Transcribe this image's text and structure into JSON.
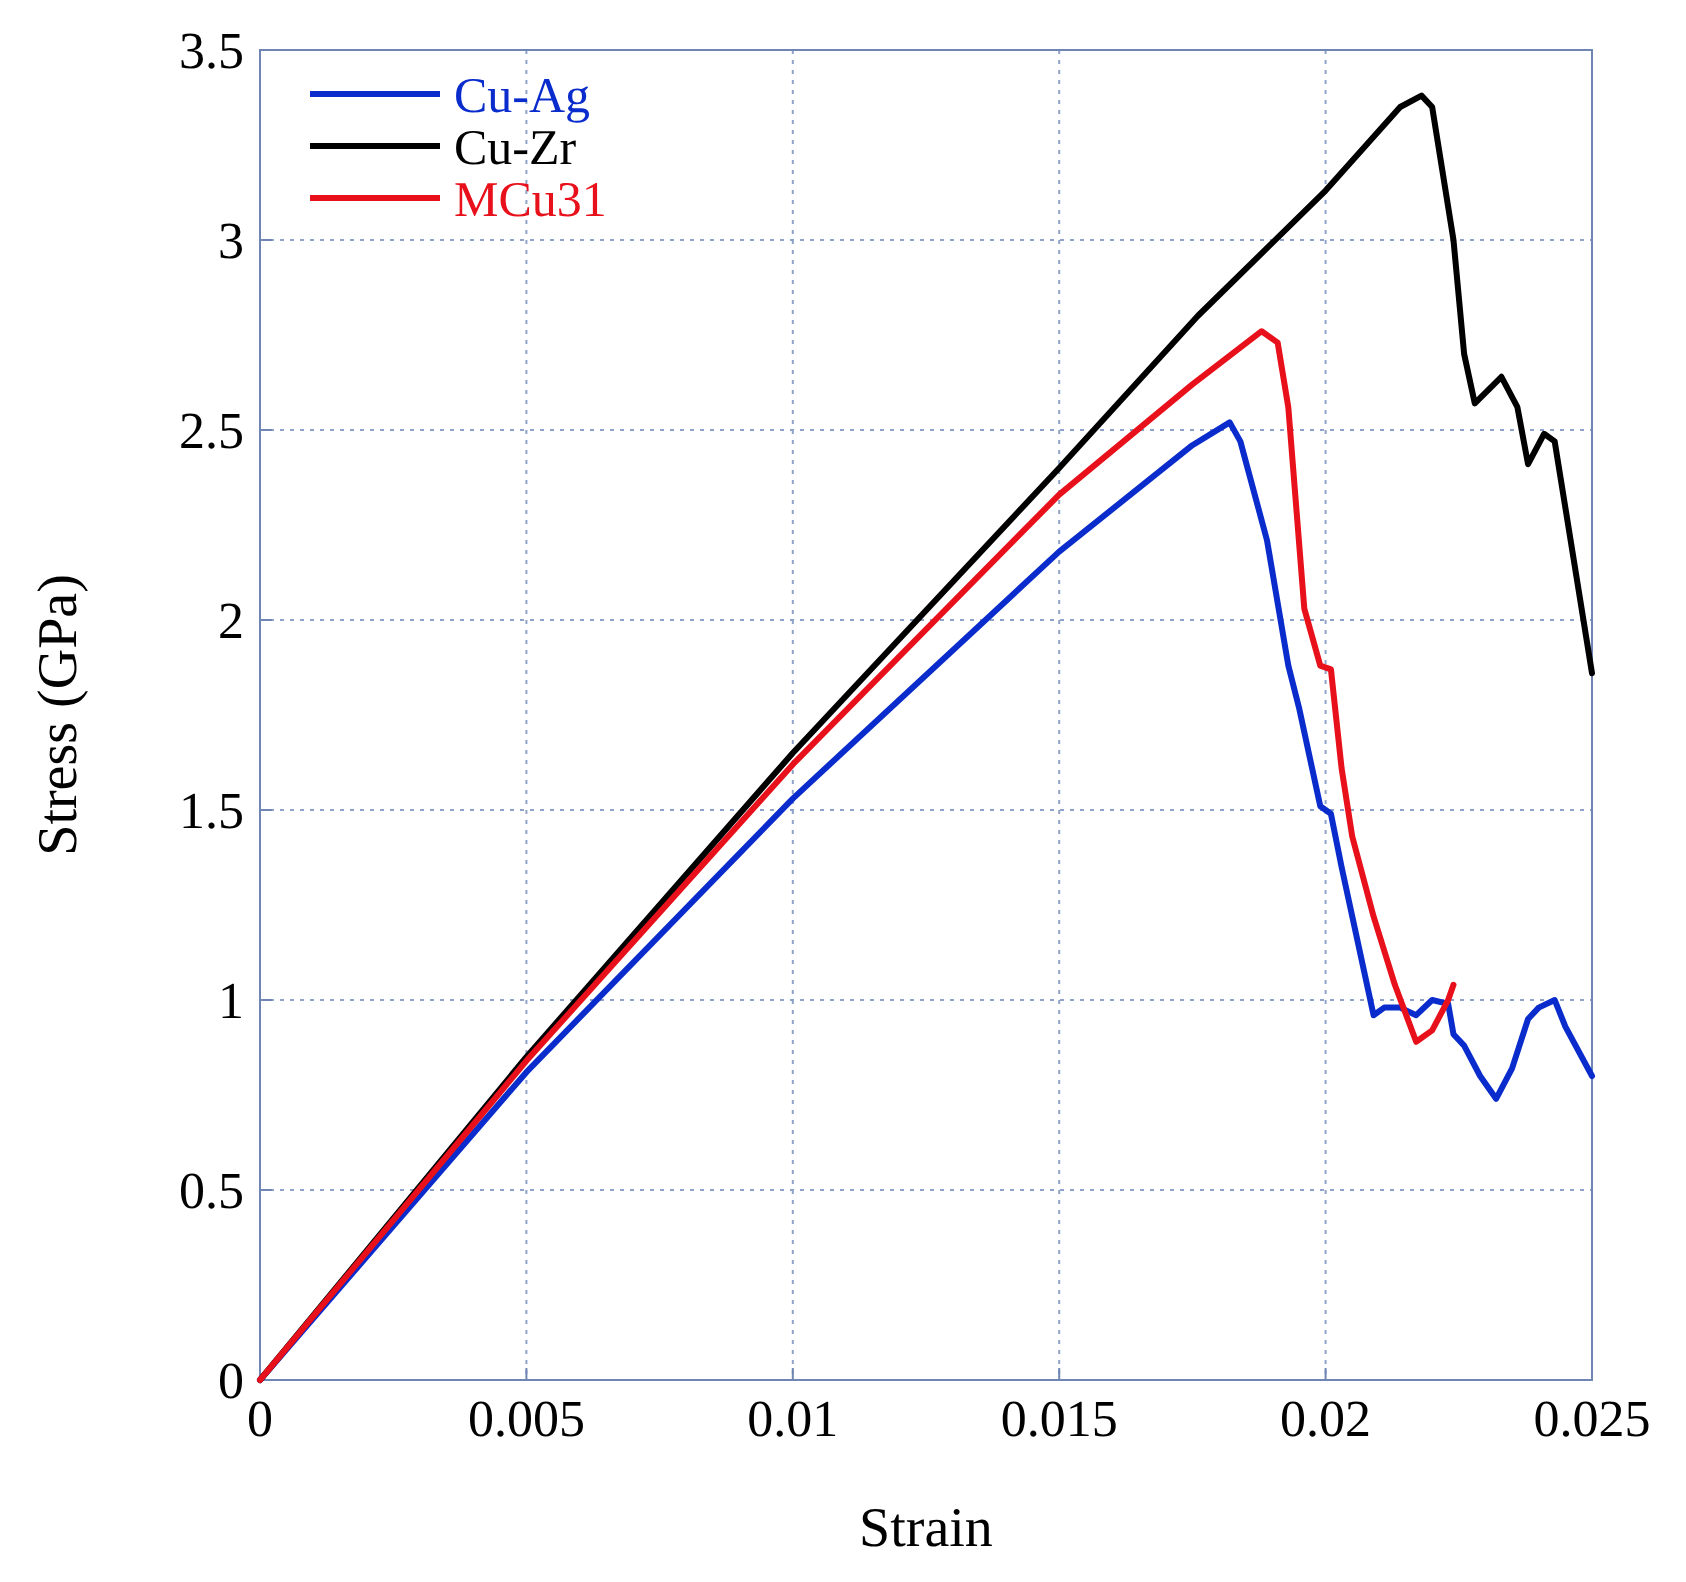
{
  "chart_data": {
    "type": "line",
    "xlabel": "Strain",
    "ylabel": "Stress (GPa)",
    "xlim": [
      0,
      0.025
    ],
    "ylim": [
      0,
      3.5
    ],
    "xticks": [
      0,
      0.005,
      0.01,
      0.015,
      0.02,
      0.025
    ],
    "yticks": [
      0,
      0.5,
      1,
      1.5,
      2,
      2.5,
      3,
      3.5
    ],
    "grid": true,
    "legend": "top left",
    "line_style": "solid",
    "marker": "none",
    "series": [
      {
        "name": "Cu-Ag",
        "color": "#0a2ccc",
        "x": [
          0,
          0.005,
          0.01,
          0.015,
          0.0175,
          0.0182,
          0.0184,
          0.0189,
          0.0193,
          0.0195,
          0.0199,
          0.0201,
          0.0203,
          0.0205,
          0.0209,
          0.0211,
          0.0214,
          0.0217,
          0.022,
          0.0223,
          0.0224,
          0.0226,
          0.0229,
          0.0232,
          0.0235,
          0.0238,
          0.024,
          0.0243,
          0.0245,
          0.025
        ],
        "values": [
          0,
          0.81,
          1.53,
          2.18,
          2.46,
          2.52,
          2.47,
          2.21,
          1.88,
          1.77,
          1.51,
          1.49,
          1.35,
          1.22,
          0.96,
          0.98,
          0.98,
          0.96,
          1.0,
          0.99,
          0.91,
          0.88,
          0.8,
          0.74,
          0.82,
          0.95,
          0.98,
          1.0,
          0.93,
          0.8
        ]
      },
      {
        "name": "Cu-Zr",
        "color": "#000000",
        "x": [
          0,
          0.005,
          0.01,
          0.015,
          0.0176,
          0.02,
          0.0214,
          0.0218,
          0.022,
          0.0224,
          0.0226,
          0.0228,
          0.0233,
          0.0236,
          0.0238,
          0.0241,
          0.0243,
          0.025
        ],
        "values": [
          0,
          0.85,
          1.65,
          2.4,
          2.8,
          3.13,
          3.35,
          3.38,
          3.35,
          3.0,
          2.7,
          2.57,
          2.64,
          2.56,
          2.41,
          2.49,
          2.47,
          1.86
        ]
      },
      {
        "name": "MCu31",
        "color": "#e8101a",
        "x": [
          0,
          0.005,
          0.01,
          0.015,
          0.0175,
          0.0188,
          0.0191,
          0.0193,
          0.0196,
          0.0199,
          0.0201,
          0.0203,
          0.0205,
          0.0209,
          0.0213,
          0.0217,
          0.022,
          0.0223,
          0.0224
        ],
        "values": [
          0,
          0.84,
          1.62,
          2.33,
          2.62,
          2.76,
          2.73,
          2.56,
          2.03,
          1.88,
          1.87,
          1.61,
          1.43,
          1.22,
          1.04,
          0.89,
          0.92,
          1.0,
          1.04
        ]
      }
    ]
  }
}
